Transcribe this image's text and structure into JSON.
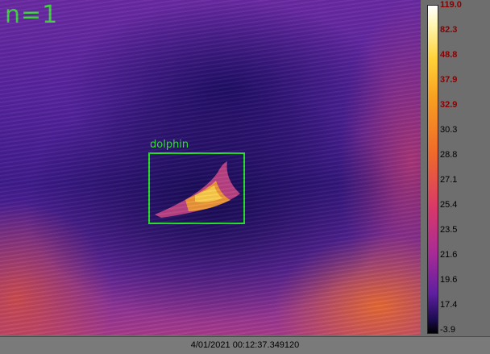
{
  "overlay": {
    "count_label": "n=1",
    "detection_label": "dolphin",
    "box_color": "#22e022"
  },
  "scale": {
    "ticks": [
      "119.0",
      "82.3",
      "48.8",
      "37.9",
      "32.9",
      "30.3",
      "28.8",
      "27.1",
      "25.4",
      "23.5",
      "21.6",
      "19.6",
      "17.4",
      "-3.9"
    ],
    "hot_ticks": [
      "119.0",
      "82.3",
      "48.8",
      "37.9",
      "32.9"
    ]
  },
  "status": {
    "timestamp": "4/01/2021 00:12:37.349120"
  }
}
